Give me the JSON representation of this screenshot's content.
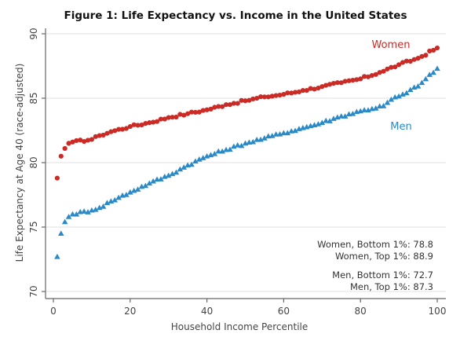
{
  "chart_data": {
    "type": "scatter",
    "title": "Figure 1: Life Expectancy vs. Income in the United States",
    "xlabel": "Household Income Percentile",
    "ylabel": "Life Expectancy at Age 40 (race-adjusted)",
    "xlim": [
      0,
      100
    ],
    "ylim": [
      70,
      90
    ],
    "xticks": [
      0,
      20,
      40,
      60,
      80,
      100
    ],
    "yticks": [
      70,
      75,
      80,
      85,
      90
    ],
    "grid": "horizontal",
    "series": [
      {
        "name": "Women",
        "color": "#cc2a24",
        "marker": "circle",
        "label_position": "top-right",
        "anchors": [
          [
            1,
            78.8
          ],
          [
            2,
            80.5
          ],
          [
            3,
            81.1
          ],
          [
            4,
            81.5
          ],
          [
            5,
            81.6
          ],
          [
            10,
            81.8
          ],
          [
            12,
            82.1
          ],
          [
            15,
            82.4
          ],
          [
            20,
            82.8
          ],
          [
            25,
            83.1
          ],
          [
            30,
            83.5
          ],
          [
            35,
            83.8
          ],
          [
            40,
            84.1
          ],
          [
            45,
            84.5
          ],
          [
            50,
            84.8
          ],
          [
            55,
            85.1
          ],
          [
            60,
            85.3
          ],
          [
            65,
            85.6
          ],
          [
            70,
            85.9
          ],
          [
            75,
            86.2
          ],
          [
            80,
            86.5
          ],
          [
            85,
            87.0
          ],
          [
            90,
            87.6
          ],
          [
            95,
            88.1
          ],
          [
            100,
            88.9
          ]
        ]
      },
      {
        "name": "Men",
        "color": "#2a8ac8",
        "marker": "triangle",
        "label_position": "right",
        "anchors": [
          [
            1,
            72.7
          ],
          [
            2,
            74.5
          ],
          [
            3,
            75.4
          ],
          [
            4,
            75.8
          ],
          [
            5,
            76.0
          ],
          [
            10,
            76.3
          ],
          [
            12,
            76.5
          ],
          [
            15,
            77.0
          ],
          [
            20,
            77.7
          ],
          [
            25,
            78.4
          ],
          [
            30,
            79.0
          ],
          [
            35,
            79.8
          ],
          [
            40,
            80.5
          ],
          [
            45,
            81.0
          ],
          [
            50,
            81.5
          ],
          [
            55,
            81.9
          ],
          [
            60,
            82.3
          ],
          [
            65,
            82.7
          ],
          [
            70,
            83.1
          ],
          [
            75,
            83.6
          ],
          [
            80,
            84.0
          ],
          [
            86,
            84.4
          ],
          [
            88,
            84.9
          ],
          [
            92,
            85.4
          ],
          [
            96,
            86.2
          ],
          [
            100,
            87.3
          ]
        ]
      }
    ],
    "annotations": [
      "Women, Bottom 1%: 78.8",
      "Women, Top 1%: 88.9",
      "Men, Bottom 1%: 72.7",
      "Men, Top 1%: 87.3"
    ]
  }
}
